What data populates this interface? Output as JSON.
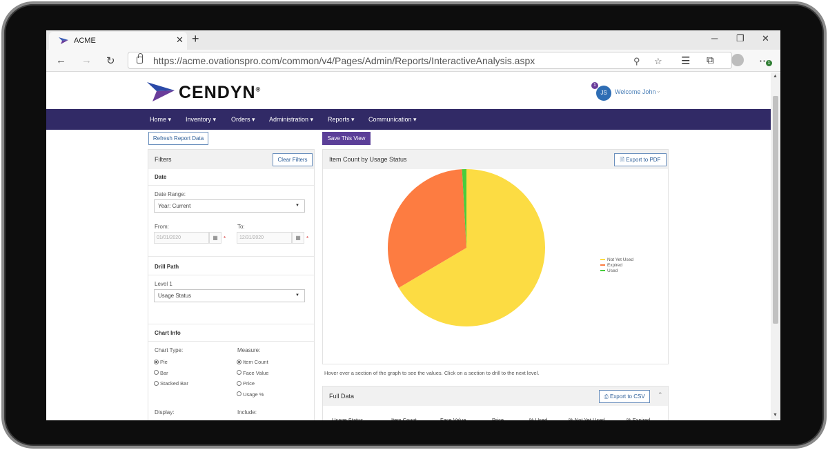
{
  "browser": {
    "tab_title": "ACME",
    "url": "https://acme.ovationspro.com/common/v4/Pages/Admin/Reports/InteractiveAnalysis.aspx",
    "extension_badge": "1"
  },
  "header": {
    "brand": "CENDYN",
    "avatar_initials": "JS",
    "notification_count": "1",
    "welcome": "Welcome John"
  },
  "nav": [
    "Home ▾",
    "Inventory ▾",
    "Orders ▾",
    "Administration ▾",
    "Reports ▾",
    "Communication ▾"
  ],
  "actions": {
    "refresh": "Refresh Report Data",
    "save_view": "Save This View"
  },
  "filters": {
    "title": "Filters",
    "clear": "Clear Filters",
    "date": {
      "title": "Date",
      "range_label": "Date Range:",
      "range_value": "Year: Current",
      "from_label": "From:",
      "from_value": "01/01/2020",
      "to_label": "To:",
      "to_value": "12/31/2020",
      "required": "*"
    },
    "drill": {
      "title": "Drill Path",
      "level_label": "Level 1",
      "level_value": "Usage Status"
    },
    "chart_info": {
      "title": "Chart Info",
      "type_label": "Chart Type:",
      "types": [
        "Pie",
        "Bar",
        "Stacked Bar"
      ],
      "type_selected": "Pie",
      "measure_label": "Measure:",
      "measures": [
        "Item Count",
        "Face Value",
        "Price",
        "Usage %"
      ],
      "measure_selected": "Item Count",
      "display_label": "Display:",
      "include_label": "Include:"
    }
  },
  "chart_panel": {
    "export": "Export to PDF",
    "hint": "Hover over a section of the graph to see the values. Click on a section to drill to the next level."
  },
  "chart_data": {
    "type": "pie",
    "title": "Item Count by Usage Status",
    "legend_position": "right",
    "categories": [
      "Not Yet Used",
      "Expired",
      "Used"
    ],
    "values": [
      66.5,
      32.6,
      0.9
    ],
    "colors": [
      "#fcdc43",
      "#fd7c41",
      "#47cd3d"
    ]
  },
  "full_data": {
    "title": "Full Data",
    "export": "Export to CSV",
    "columns": [
      "Usage Status",
      "Item Count",
      "Face Value",
      "Price",
      "% Used",
      "% Not Yet Used",
      "% Expired"
    ]
  }
}
